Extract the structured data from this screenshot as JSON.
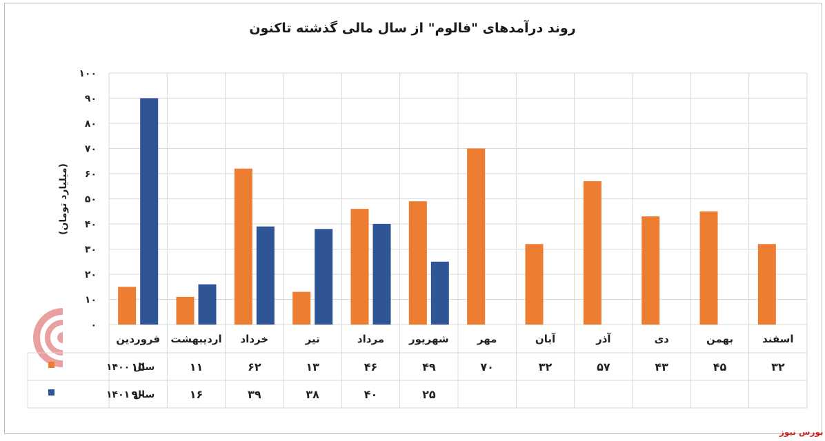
{
  "chart_data": {
    "type": "bar",
    "title": "روند درآمدهای \"فالوم\" از سال مالی گذشته تاکنون",
    "ylabel": "(میلیارد تومان)",
    "ylim": [
      0,
      100
    ],
    "yticks": [
      "۰",
      "۱۰",
      "۲۰",
      "۳۰",
      "۴۰",
      "۵۰",
      "۶۰",
      "۷۰",
      "۸۰",
      "۹۰",
      "۱۰۰"
    ],
    "grid": true,
    "categories": [
      "فروردین",
      "اردیبهشت",
      "خرداد",
      "تیر",
      "مرداد",
      "شهریور",
      "مهر",
      "آبان",
      "آذر",
      "دی",
      "بهمن",
      "اسفند"
    ],
    "series": [
      {
        "name": "سال ۱۴۰۰",
        "color": "#ed7d31",
        "values": [
          15,
          11,
          62,
          13,
          46,
          49,
          70,
          32,
          57,
          43,
          45,
          32
        ],
        "labels": [
          "۱۵",
          "۱۱",
          "۶۲",
          "۱۳",
          "۴۶",
          "۴۹",
          "۷۰",
          "۳۲",
          "۵۷",
          "۴۳",
          "۴۵",
          "۳۲"
        ]
      },
      {
        "name": "سال ۱۴۰۱",
        "color": "#2f5597",
        "values": [
          90,
          16,
          39,
          38,
          40,
          25,
          null,
          null,
          null,
          null,
          null,
          null
        ],
        "labels": [
          "۹۰",
          "۱۶",
          "۳۹",
          "۳۸",
          "۴۰",
          "۲۵",
          "",
          "",
          "",
          "",
          "",
          ""
        ]
      }
    ]
  },
  "watermark": "بورس نیوز",
  "logo_text": "بورس نیوز"
}
